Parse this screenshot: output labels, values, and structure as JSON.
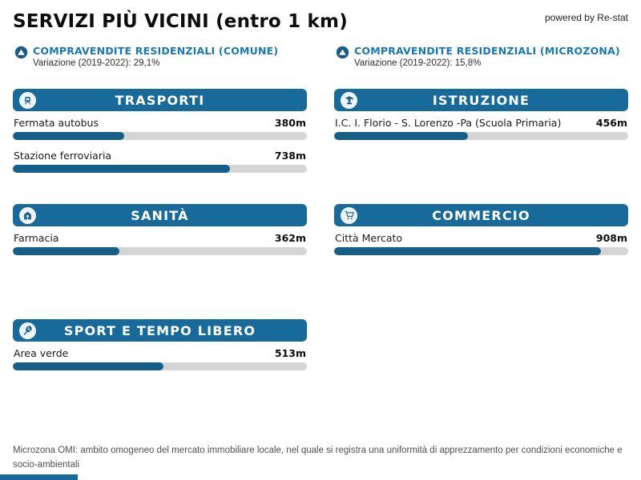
{
  "header": {
    "title": "SERVIZI PIÙ VICINI (entro 1 km)",
    "powered_by": "powered by Re-stat"
  },
  "stats": [
    {
      "icon": "trend-up-circle-icon",
      "label": "COMPRAVENDITE RESIDENZIALI (COMUNE)",
      "variation": "Variazione (2019-2022): 29,1%"
    },
    {
      "icon": "trend-up-circle-icon",
      "label": "COMPRAVENDITE RESIDENZIALI (MICROZONA)",
      "variation": "Variazione (2019-2022): 15,8%"
    }
  ],
  "chart_data": {
    "type": "bar",
    "orientation": "horizontal",
    "title": "SERVIZI PIÙ VICINI (entro 1 km)",
    "unit": "m",
    "axis_max": 1000,
    "groups": [
      {
        "category": "TRASPORTI",
        "icon": "train-icon",
        "items": [
          {
            "label": "Fermata autobus",
            "value": 380,
            "display": "380m",
            "percent": 38
          },
          {
            "label": "Stazione ferroviaria",
            "value": 738,
            "display": "738m",
            "percent": 73.8
          }
        ]
      },
      {
        "category": "ISTRUZIONE",
        "icon": "graduation-cap-icon",
        "items": [
          {
            "label": "I.C. I. Florio - S. Lorenzo -Pa (Scuola Primaria)",
            "value": 456,
            "display": "456m",
            "percent": 45.6
          }
        ]
      },
      {
        "category": "SANITÀ",
        "icon": "hospital-icon",
        "items": [
          {
            "label": "Farmacia",
            "value": 362,
            "display": "362m",
            "percent": 36.2
          }
        ]
      },
      {
        "category": "COMMERCIO",
        "icon": "shopping-cart-icon",
        "items": [
          {
            "label": "Città Mercato",
            "value": 908,
            "display": "908m",
            "percent": 90.8
          }
        ]
      },
      {
        "category": "SPORT E TEMPO LIBERO",
        "icon": "tennis-racket-icon",
        "items": [
          {
            "label": "Area verde",
            "value": 513,
            "display": "513m",
            "percent": 51.3
          }
        ]
      }
    ]
  },
  "footer": {
    "note": "Microzona OMI: ambito omogeneo del mercato immobiliare locale, nel quale si registra una uniformità di apprezzamento per condizioni economiche e socio-ambientali"
  },
  "colors": {
    "panel_header": "#186a9b",
    "bar_fill": "#15608a",
    "bar_track": "#d5d5d5",
    "accent_blue": "#1878b4"
  }
}
